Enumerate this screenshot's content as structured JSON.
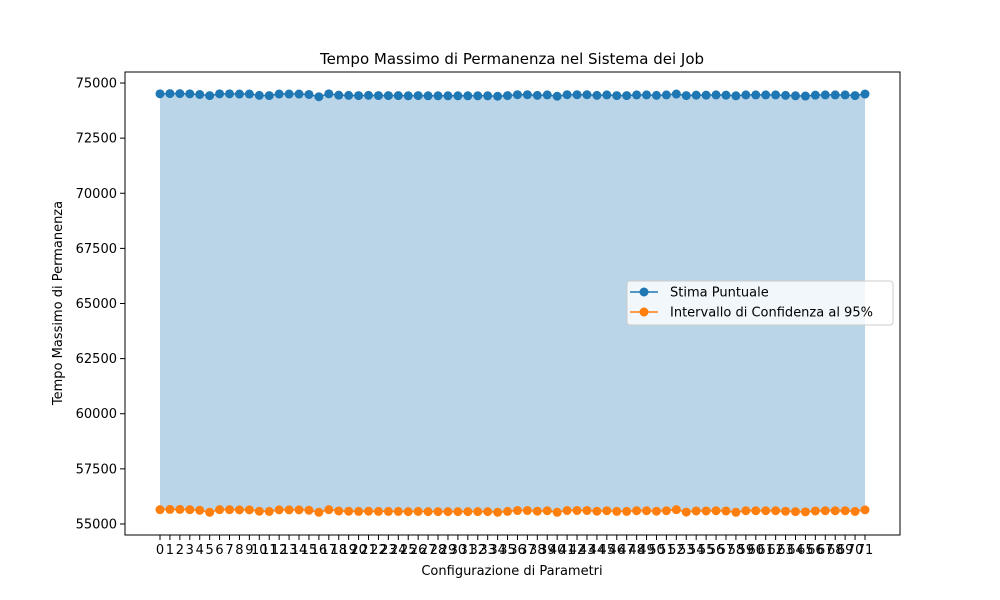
{
  "chart_data": {
    "type": "line",
    "title": "Tempo Massimo di Permanenza nel Sistema dei Job",
    "xlabel": "Configurazione di Parametri",
    "ylabel": "Tempo Massimo di Permanenza",
    "x": [
      0,
      1,
      2,
      3,
      4,
      5,
      6,
      7,
      8,
      9,
      10,
      11,
      12,
      13,
      14,
      15,
      16,
      17,
      18,
      19,
      20,
      21,
      22,
      23,
      24,
      25,
      26,
      27,
      28,
      29,
      30,
      31,
      32,
      33,
      34,
      35,
      36,
      37,
      38,
      39,
      40,
      41,
      42,
      43,
      44,
      45,
      46,
      47,
      48,
      49,
      50,
      51,
      52,
      53,
      54,
      55,
      56,
      57,
      58,
      59,
      60,
      61,
      62,
      63,
      64,
      65,
      66,
      67,
      68,
      69,
      70,
      71
    ],
    "ylim": [
      54500,
      75500
    ],
    "yticks": [
      55000,
      57500,
      60000,
      62500,
      65000,
      67500,
      70000,
      72500,
      75000
    ],
    "grid": false,
    "legend_position": "center-right",
    "fill": {
      "between": [
        "Intervallo di Confidenza al 95%",
        "Stima Puntuale"
      ],
      "color": "#bad5e8"
    },
    "series": [
      {
        "name": "Stima Puntuale",
        "color": "#1f77b4",
        "values": [
          74510,
          74520,
          74520,
          74510,
          74480,
          74430,
          74510,
          74510,
          74500,
          74500,
          74440,
          74430,
          74500,
          74500,
          74500,
          74480,
          74380,
          74510,
          74450,
          74440,
          74430,
          74440,
          74430,
          74430,
          74430,
          74420,
          74430,
          74420,
          74420,
          74420,
          74420,
          74420,
          74420,
          74420,
          74400,
          74430,
          74470,
          74470,
          74440,
          74460,
          74400,
          74470,
          74470,
          74470,
          74440,
          74460,
          74430,
          74430,
          74460,
          74460,
          74440,
          74460,
          74500,
          74430,
          74450,
          74450,
          74460,
          74450,
          74420,
          74460,
          74460,
          74460,
          74460,
          74440,
          74420,
          74410,
          74450,
          74460,
          74460,
          74460,
          74430,
          74500
        ]
      },
      {
        "name": "Intervallo di Confidenza al 95%",
        "color": "#ff7f0e",
        "values": [
          55650,
          55660,
          55660,
          55650,
          55620,
          55530,
          55650,
          55650,
          55640,
          55640,
          55580,
          55570,
          55640,
          55640,
          55640,
          55620,
          55530,
          55650,
          55590,
          55580,
          55570,
          55580,
          55570,
          55570,
          55570,
          55560,
          55570,
          55560,
          55560,
          55560,
          55560,
          55560,
          55560,
          55560,
          55530,
          55570,
          55610,
          55610,
          55580,
          55600,
          55530,
          55610,
          55610,
          55610,
          55580,
          55600,
          55570,
          55570,
          55600,
          55600,
          55580,
          55600,
          55650,
          55540,
          55590,
          55590,
          55600,
          55590,
          55530,
          55600,
          55600,
          55600,
          55600,
          55580,
          55560,
          55550,
          55590,
          55600,
          55600,
          55600,
          55570,
          55640
        ]
      }
    ]
  }
}
